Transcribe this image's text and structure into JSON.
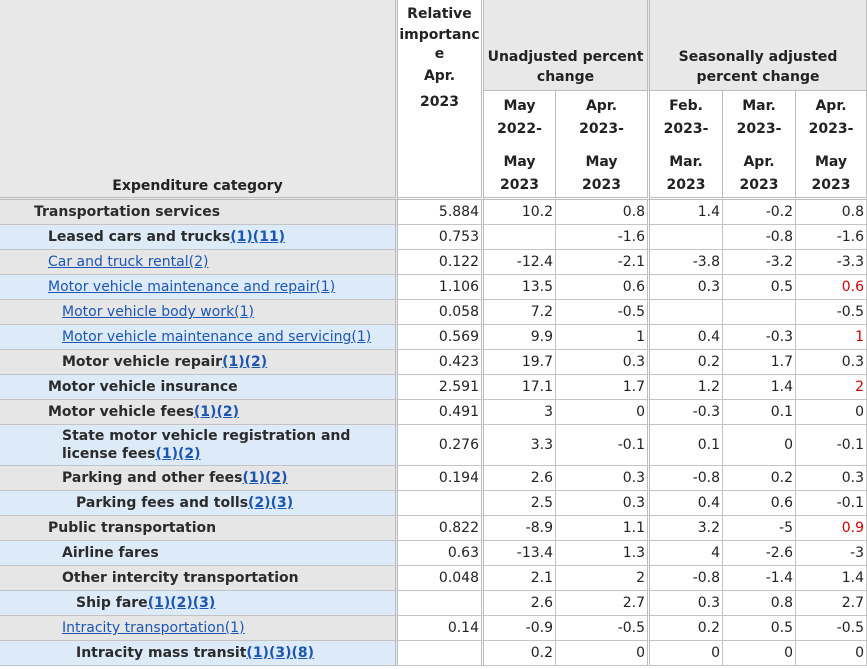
{
  "header": {
    "category_label": "Expenditure category",
    "relative_importance": [
      "Relative",
      "importanc",
      "e",
      "Apr.",
      "2023"
    ],
    "unadjusted_label": [
      "Unadjusted percent",
      "change"
    ],
    "seasonal_label": [
      "Seasonally adjusted",
      "percent change"
    ],
    "periods": [
      [
        "May",
        "2022-",
        "May",
        "2023"
      ],
      [
        "Apr.",
        "2023-",
        "May",
        "2023"
      ],
      [
        "Feb.",
        "2023-",
        "Mar.",
        "2023"
      ],
      [
        "Mar.",
        "2023-",
        "Apr.",
        "2023"
      ],
      [
        "Apr.",
        "2023-",
        "May",
        "2023"
      ]
    ]
  },
  "rows": [
    {
      "label": "Transportation services",
      "refs": "",
      "indent": 0,
      "shade": "lt",
      "link": "none",
      "values": [
        "5.884",
        "10.2",
        "0.8",
        "1.4",
        "-0.2",
        "0.8"
      ],
      "red_last": false
    },
    {
      "label": "Leased cars and trucks",
      "refs": "(1)(11)",
      "indent": 1,
      "shade": "bl",
      "link": "refs",
      "values": [
        "0.753",
        "",
        "-1.6",
        "",
        "-0.8",
        "-1.6"
      ],
      "red_last": false
    },
    {
      "label": "Car and truck rental(2)",
      "refs": "",
      "indent": 1,
      "shade": "lt",
      "link": "all",
      "values": [
        "0.122",
        "-12.4",
        "-2.1",
        "-3.8",
        "-3.2",
        "-3.3"
      ],
      "red_last": false
    },
    {
      "label": "Motor vehicle maintenance and repair(1)",
      "refs": "",
      "indent": 1,
      "shade": "bl",
      "link": "all",
      "values": [
        "1.106",
        "13.5",
        "0.6",
        "0.3",
        "0.5",
        "0.6"
      ],
      "red_last": true
    },
    {
      "label": "Motor vehicle body work(1)",
      "refs": "",
      "indent": 2,
      "shade": "lt",
      "link": "all",
      "values": [
        "0.058",
        "7.2",
        "-0.5",
        "",
        "",
        "-0.5"
      ],
      "red_last": false
    },
    {
      "label": "Motor vehicle maintenance and servicing(1)",
      "refs": "",
      "indent": 2,
      "shade": "bl",
      "link": "all",
      "values": [
        "0.569",
        "9.9",
        "1",
        "0.4",
        "-0.3",
        "1"
      ],
      "red_last": true
    },
    {
      "label": "Motor vehicle repair",
      "refs": "(1)(2)",
      "indent": 2,
      "shade": "lt",
      "link": "refs",
      "values": [
        "0.423",
        "19.7",
        "0.3",
        "0.2",
        "1.7",
        "0.3"
      ],
      "red_last": false
    },
    {
      "label": "Motor vehicle insurance",
      "refs": "",
      "indent": 1,
      "shade": "bl",
      "link": "none",
      "values": [
        "2.591",
        "17.1",
        "1.7",
        "1.2",
        "1.4",
        "2"
      ],
      "red_last": true
    },
    {
      "label": "Motor vehicle fees",
      "refs": "(1)(2)",
      "indent": 1,
      "shade": "lt",
      "link": "refs",
      "values": [
        "0.491",
        "3",
        "0",
        "-0.3",
        "0.1",
        "0"
      ],
      "red_last": false
    },
    {
      "label": "State motor vehicle registration and license fees",
      "refs": "(1)(2)",
      "indent": 2,
      "shade": "bl",
      "link": "refs",
      "tall": true,
      "values": [
        "0.276",
        "3.3",
        "-0.1",
        "0.1",
        "0",
        "-0.1"
      ],
      "red_last": false
    },
    {
      "label": "Parking and other fees",
      "refs": "(1)(2)",
      "indent": 2,
      "shade": "lt",
      "link": "refs",
      "values": [
        "0.194",
        "2.6",
        "0.3",
        "-0.8",
        "0.2",
        "0.3"
      ],
      "red_last": false
    },
    {
      "label": "Parking fees and tolls",
      "refs": "(2)(3)",
      "indent": 3,
      "shade": "bl",
      "link": "refs",
      "values": [
        "",
        "2.5",
        "0.3",
        "0.4",
        "0.6",
        "-0.1"
      ],
      "red_last": false
    },
    {
      "label": "Public transportation",
      "refs": "",
      "indent": 1,
      "shade": "lt",
      "link": "none",
      "values": [
        "0.822",
        "-8.9",
        "1.1",
        "3.2",
        "-5",
        "0.9"
      ],
      "red_last": true
    },
    {
      "label": "Airline fares",
      "refs": "",
      "indent": 2,
      "shade": "bl",
      "link": "none",
      "values": [
        "0.63",
        "-13.4",
        "1.3",
        "4",
        "-2.6",
        "-3"
      ],
      "red_last": false
    },
    {
      "label": "Other intercity transportation",
      "refs": "",
      "indent": 2,
      "shade": "lt",
      "link": "none",
      "values": [
        "0.048",
        "2.1",
        "2",
        "-0.8",
        "-1.4",
        "1.4"
      ],
      "red_last": false
    },
    {
      "label": "Ship fare",
      "refs": "(1)(2)(3)",
      "indent": 3,
      "shade": "bl",
      "link": "refs",
      "values": [
        "",
        "2.6",
        "2.7",
        "0.3",
        "0.8",
        "2.7"
      ],
      "red_last": false
    },
    {
      "label": "Intracity transportation(1)",
      "refs": "",
      "indent": 2,
      "shade": "lt",
      "link": "all",
      "values": [
        "0.14",
        "-0.9",
        "-0.5",
        "0.2",
        "0.5",
        "-0.5"
      ],
      "red_last": false
    },
    {
      "label": "Intracity mass transit",
      "refs": "(1)(3)(8)",
      "indent": 3,
      "shade": "bl",
      "link": "refs",
      "values": [
        "",
        "0.2",
        "0",
        "0",
        "0",
        "0"
      ],
      "red_last": false
    }
  ],
  "colors": {
    "header_bg": "#e8e8e8",
    "row_gray": "#e6e6e6",
    "row_blue": "#ddeaf8",
    "link": "#1c56b5",
    "negative_highlight": "#d10000"
  }
}
